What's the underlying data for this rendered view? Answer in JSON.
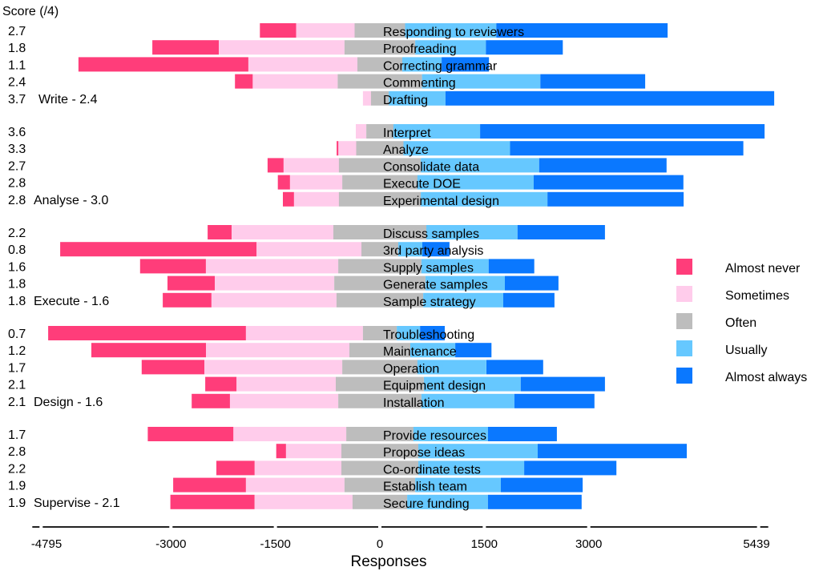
{
  "chart_data": {
    "type": "bar",
    "subtype": "diverging-stacked-horizontal",
    "title": "",
    "xlabel": "Responses",
    "score_header": "Score (/4)",
    "xlim": [
      -4795,
      5439
    ],
    "xticks": [
      -4795,
      -3000,
      -1500,
      0,
      1500,
      3000,
      5439
    ],
    "xtick_labels": [
      "-4795",
      "-3000",
      "-1500",
      "0",
      "1500",
      "3000",
      "5439"
    ],
    "center_category": "Often",
    "legend_position": "right",
    "legend": [
      {
        "name": "Almost never",
        "color": "#ff3d7a"
      },
      {
        "name": "Sometimes",
        "color": "#ffcceb"
      },
      {
        "name": "Often",
        "color": "#bdbdbd"
      },
      {
        "name": "Usually",
        "color": "#66c8ff"
      },
      {
        "name": "Almost always",
        "color": "#0a78ff"
      }
    ],
    "series_order": [
      "Almost never",
      "Sometimes",
      "Often",
      "Usually",
      "Almost always"
    ],
    "groups": [
      {
        "name": "Write",
        "score": "2.4",
        "label": "Write - 2.4",
        "rows": [
          {
            "label": "Responding to reviewers",
            "score": "2.7",
            "values": [
              520,
              840,
              725,
              1310,
              2460
            ]
          },
          {
            "label": "Proofreading",
            "score": "1.8",
            "values": [
              955,
              1805,
              1015,
              1015,
              1105
            ]
          },
          {
            "label": "Correcting grammar",
            "score": "1.1",
            "values": [
              2440,
              1565,
              645,
              565,
              680
            ]
          },
          {
            "label": "Commenting",
            "score": "2.4",
            "values": [
              255,
              1220,
              1210,
              1700,
              1505
            ]
          },
          {
            "label": "Drafting",
            "score": "3.7",
            "values": [
              0,
              115,
              255,
              815,
              4720
            ]
          }
        ]
      },
      {
        "name": "Analyse",
        "score": "3.0",
        "label": "Analyse - 3.0",
        "rows": [
          {
            "label": "Interpret",
            "score": "3.6",
            "values": [
              0,
              150,
              390,
              1245,
              4085
            ]
          },
          {
            "label": "Analyze",
            "score": "3.3",
            "values": [
              25,
              255,
              680,
              1530,
              3350
            ]
          },
          {
            "label": "Consolidate data",
            "score": "2.7",
            "values": [
              230,
              795,
              1175,
              1700,
              1830
            ]
          },
          {
            "label": "Execute DOE",
            "score": "2.8",
            "values": [
              175,
              750,
              1080,
              1670,
              2150
            ]
          },
          {
            "label": "Experimental design",
            "score": "2.8",
            "values": [
              160,
              645,
              1175,
              1820,
              1955
            ]
          }
        ]
      },
      {
        "name": "Execute",
        "score": "1.6",
        "label": "Execute - 1.6",
        "rows": [
          {
            "label": "Discuss samples",
            "score": "2.2",
            "values": [
              345,
              1460,
              1335,
              1310,
              1255
            ]
          },
          {
            "label": "3rd party analysis",
            "score": "0.8",
            "values": [
              2820,
              1505,
              530,
              345,
              390
            ]
          },
          {
            "label": "Supply samples",
            "score": "1.6",
            "values": [
              945,
              1900,
              1195,
              965,
              655
            ]
          },
          {
            "label": "Generate samples",
            "score": "1.8",
            "values": [
              680,
              1715,
              1310,
              1140,
              770
            ]
          },
          {
            "label": "Sample strategy",
            "score": "1.8",
            "values": [
              700,
              1795,
              1245,
              1150,
              735
            ]
          }
        ]
      },
      {
        "name": "Design",
        "score": "1.6",
        "label": "Design - 1.6",
        "rows": [
          {
            "label": "Troubleshooting",
            "score": "0.7",
            "values": [
              2840,
              1680,
              485,
              335,
              355
            ]
          },
          {
            "label": "Maintenance",
            "score": "1.2",
            "values": [
              1645,
              2060,
              875,
              645,
              520
            ]
          },
          {
            "label": "Operation",
            "score": "1.7",
            "values": [
              900,
              1980,
              1080,
              990,
              815
            ]
          },
          {
            "label": "Equipment design",
            "score": "2.1",
            "values": [
              450,
              1425,
              1265,
              1390,
              1210
            ]
          },
          {
            "label": "Installation",
            "score": "2.1",
            "values": [
              550,
              1555,
              1195,
              1335,
              1150
            ]
          }
        ]
      },
      {
        "name": "Supervise",
        "score": "2.1",
        "label": "Supervise - 2.1",
        "rows": [
          {
            "label": "Provide resources",
            "score": "1.7",
            "values": [
              1230,
              1620,
              965,
              1070,
              990
            ]
          },
          {
            "label": "Propose ideas",
            "score": "2.8",
            "values": [
              140,
              795,
              1105,
              1715,
              2140
            ]
          },
          {
            "label": "Co-ordinate tests",
            "score": "2.2",
            "values": [
              550,
              1245,
              1105,
              1520,
              1325
            ]
          },
          {
            "label": "Establish team",
            "score": "1.9",
            "values": [
              1045,
              1415,
              1015,
              1230,
              1175
            ]
          },
          {
            "label": "Secure funding",
            "score": "1.9",
            "values": [
              1210,
              1405,
              785,
              1160,
              1345
            ]
          }
        ]
      }
    ]
  }
}
